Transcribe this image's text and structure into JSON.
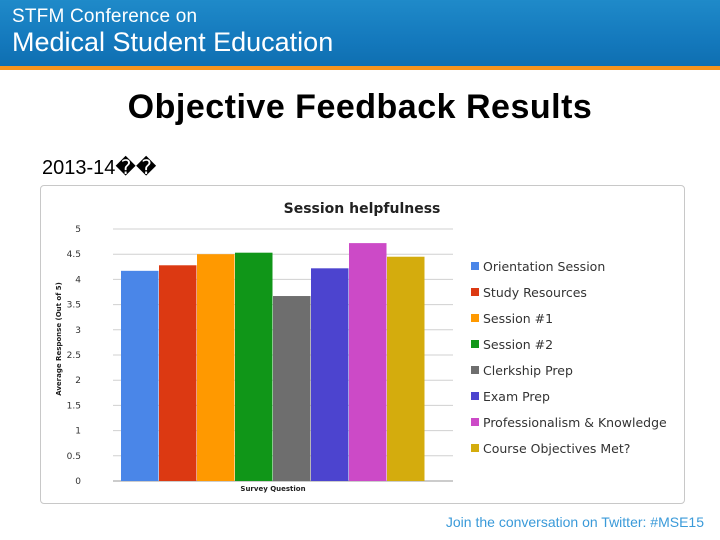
{
  "header": {
    "line1": "STFM Conference on",
    "line2": "Medical Student Education"
  },
  "slide": {
    "title": "Objective Feedback Results",
    "subtitle": "2013-14��"
  },
  "footer": {
    "text": "Join the conversation on Twitter: #MSE15"
  },
  "colors": {
    "header_blue": "#1479bd",
    "header_stripe": "#f7941d",
    "footer_text": "#3a9ad9"
  },
  "chart_data": {
    "type": "bar",
    "title": "Session helpfulness",
    "xlabel": "Survey Question",
    "ylabel": "Average Response (Out of 5)",
    "ylim": [
      0,
      5
    ],
    "yticks": [
      "0",
      "0.5",
      "1",
      "1.5",
      "2",
      "2.5",
      "3",
      "3.5",
      "4",
      "4.5",
      "5"
    ],
    "grid": true,
    "legend_position": "right",
    "series": [
      {
        "name": "Orientation Session",
        "value": 4.17,
        "color": "#4a86e8"
      },
      {
        "name": "Study Resources",
        "value": 4.28,
        "color": "#dc3912"
      },
      {
        "name": "Session #1",
        "value": 4.5,
        "color": "#ff9900"
      },
      {
        "name": "Session #2",
        "value": 4.53,
        "color": "#109618"
      },
      {
        "name": "Clerkship Prep",
        "value": 3.67,
        "color": "#6e6e6e"
      },
      {
        "name": "Exam Prep",
        "value": 4.22,
        "color": "#4c44cf"
      },
      {
        "name": "Professionalism & Knowledge",
        "value": 4.72,
        "color": "#cc4ac7"
      },
      {
        "name": "Course Objectives Met?",
        "value": 4.45,
        "color": "#d4ac0d"
      }
    ]
  }
}
